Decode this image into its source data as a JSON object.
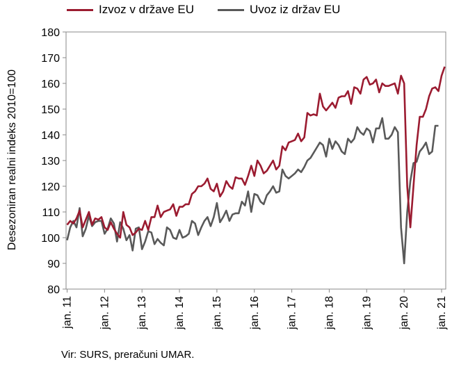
{
  "chart_data": {
    "type": "line",
    "ylabel": "Desezoniran realni indeks 2010=100",
    "ylim": [
      80,
      180
    ],
    "yticks": [
      80,
      90,
      100,
      110,
      120,
      130,
      140,
      150,
      160,
      170,
      180
    ],
    "grid": "none",
    "legend_placement": "top",
    "x_start": "2011-01",
    "x_tick_labels": [
      "jan. 11",
      "jan. 12",
      "jan. 13",
      "jan. 14",
      "jan. 15",
      "jan. 16",
      "jan. 17",
      "jan. 18",
      "jan. 19",
      "jan. 20",
      "jan. 21"
    ],
    "series": [
      {
        "name": "Izvoz v države EU",
        "color": "#9b1b30",
        "values": [
          105,
          106.5,
          105.5,
          107.5,
          110.5,
          104,
          107,
          110,
          105,
          107.5,
          107,
          108,
          104,
          103,
          106,
          103.5,
          101.5,
          100,
          110,
          105,
          104,
          101,
          102,
          103.5,
          103,
          106.5,
          103,
          108,
          108,
          112.5,
          108,
          110,
          110.5,
          111,
          113,
          108.5,
          112,
          112,
          113,
          113,
          117,
          118,
          120,
          120,
          121,
          123,
          119,
          118,
          121,
          116,
          118,
          122,
          120,
          119,
          123.5,
          123,
          123,
          120.5,
          124,
          128,
          124,
          130,
          128,
          125,
          126,
          128,
          130,
          126.5,
          128,
          135.5,
          134,
          137,
          137.5,
          138,
          140.5,
          137.5,
          139,
          148.5,
          147.5,
          148,
          147.5,
          156,
          151,
          149.5,
          151,
          152.5,
          150.5,
          154.5,
          155,
          155,
          157,
          152,
          158.5,
          158,
          156,
          161.5,
          162.5,
          159.5,
          160,
          161.5,
          156.5,
          160,
          159,
          159,
          159.5,
          160,
          156,
          163,
          160,
          120,
          104,
          120,
          136,
          147,
          147,
          150,
          155,
          158,
          158.5,
          157,
          163,
          166.5
        ]
      },
      {
        "name": "Uvoz iz držav EU",
        "color": "#595959",
        "values": [
          99,
          104,
          106.5,
          104,
          111.5,
          100.5,
          103.5,
          108.5,
          104.5,
          106,
          106.5,
          106.5,
          101.5,
          103.5,
          107.5,
          105.5,
          98.5,
          106,
          103.5,
          99,
          101,
          95,
          103.5,
          104,
          95.5,
          98.5,
          102.5,
          102,
          97.5,
          99.5,
          98,
          97,
          104,
          103,
          100,
          99.5,
          103,
          100,
          100.5,
          101.5,
          106.5,
          105.5,
          101,
          104,
          106.5,
          108,
          104.5,
          108,
          113.5,
          106,
          108,
          110.5,
          106.5,
          109,
          109.5,
          109.5,
          114,
          112.5,
          118,
          110,
          117,
          116.5,
          114,
          113,
          116.5,
          118,
          120,
          117.5,
          118,
          126.5,
          124,
          123,
          124,
          125,
          126.5,
          125.5,
          127.5,
          130,
          131,
          133,
          135,
          137,
          136,
          131.5,
          138.5,
          134.5,
          137.5,
          136,
          133.5,
          132.5,
          138.5,
          137,
          138.5,
          143,
          141,
          140,
          142.5,
          141.5,
          137,
          142.5,
          142.5,
          146.5,
          138.5,
          138.5,
          140,
          143,
          141,
          104,
          90,
          110,
          122,
          129,
          129.5,
          133.5,
          135,
          137,
          132.5,
          133.5,
          143.5,
          143.5
        ]
      }
    ]
  },
  "source_text": "Vir: SURS, preračuni UMAR."
}
